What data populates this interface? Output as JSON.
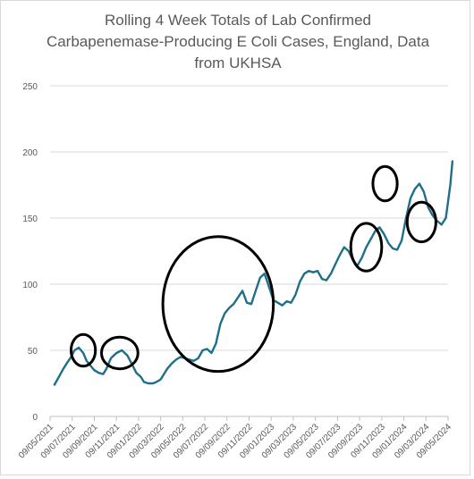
{
  "chart_data": {
    "type": "line",
    "title_lines": [
      "Rolling 4 Week Totals of Lab Confirmed",
      "Carbapenemase-Producing E Coli Cases, England, Data",
      "from UKHSA"
    ],
    "ylim": [
      0,
      250
    ],
    "yticks": [
      "0",
      "50",
      "100",
      "150",
      "200",
      "250"
    ],
    "xticks": [
      "09/05/2021",
      "09/07/2021",
      "09/09/2021",
      "09/11/2021",
      "09/01/2022",
      "09/03/2022",
      "09/05/2022",
      "09/07/2022",
      "09/09/2022",
      "09/11/2022",
      "09/01/2023",
      "09/03/2023",
      "09/05/2023",
      "09/07/2023",
      "09/09/2023",
      "09/11/2023",
      "09/01/2024",
      "09/03/2024",
      "09/05/2024"
    ],
    "grid": true,
    "legend": "none",
    "line_color": "#1f6f8b",
    "series": [
      {
        "x": [
          0.4,
          0.8,
          1.2,
          1.5,
          1.9,
          2.2,
          2.6,
          3.0,
          3.3,
          3.7,
          4.0,
          4.4,
          4.8,
          5.1,
          5.5,
          6.0,
          6.5,
          7.0,
          7.5,
          7.8,
          8.2,
          8.5,
          8.9,
          9.3,
          9.6,
          10.0,
          10.3,
          10.6,
          11.0,
          11.4,
          11.8,
          12.2,
          12.6,
          13.0,
          13.4,
          13.8,
          14.2,
          14.6,
          15.0,
          15.4,
          15.8,
          16.2,
          16.6,
          17.0,
          17.4,
          17.8,
          18.2,
          18.6,
          19.0,
          19.4,
          19.8,
          20.2,
          20.6,
          21.0,
          21.4,
          21.8,
          22.2,
          22.6,
          23.0,
          23.4,
          23.8,
          24.2,
          24.6,
          25.0,
          25.4,
          25.8,
          26.2,
          26.6,
          27.0,
          27.4,
          27.8,
          28.2,
          28.6,
          29.0,
          29.4,
          29.8,
          30.2,
          30.6,
          31.0,
          31.4,
          31.8,
          32.2,
          32.6,
          33.0,
          33.4,
          33.8,
          34.2,
          34.6,
          35.0,
          35.4,
          35.8,
          36.2,
          36.4
        ],
        "values": [
          24,
          30,
          36,
          40,
          45,
          50,
          52,
          48,
          42,
          38,
          35,
          33,
          32,
          36,
          44,
          48,
          50,
          46,
          38,
          33,
          30,
          26,
          25,
          25,
          26,
          28,
          32,
          36,
          40,
          43,
          45,
          44,
          43,
          42,
          44,
          50,
          51,
          48,
          55,
          70,
          78,
          82,
          85,
          90,
          95,
          86,
          85,
          95,
          105,
          108,
          98,
          88,
          86,
          84,
          87,
          86,
          92,
          102,
          108,
          110,
          109,
          110,
          104,
          103,
          108,
          115,
          122,
          128,
          125,
          118,
          114,
          120,
          128,
          134,
          140,
          143,
          138,
          131,
          127,
          126,
          133,
          150,
          165,
          172,
          176,
          170,
          158,
          152,
          148,
          145,
          150,
          175,
          193
        ]
      }
    ],
    "annotations": [
      {
        "type": "ellipse",
        "cx": 3.0,
        "cy": 50,
        "rx": 1.1,
        "ry": 12
      },
      {
        "type": "ellipse",
        "cx": 6.3,
        "cy": 48,
        "rx": 1.65,
        "ry": 12
      },
      {
        "type": "ellipse",
        "cx": 15.2,
        "cy": 85,
        "rx": 5.0,
        "ry": 51
      },
      {
        "type": "ellipse",
        "cx": 28.6,
        "cy": 128,
        "rx": 1.4,
        "ry": 18
      },
      {
        "type": "ellipse",
        "cx": 30.3,
        "cy": 176,
        "rx": 1.1,
        "ry": 13
      },
      {
        "type": "ellipse",
        "cx": 33.6,
        "cy": 147,
        "rx": 1.3,
        "ry": 15
      }
    ]
  }
}
